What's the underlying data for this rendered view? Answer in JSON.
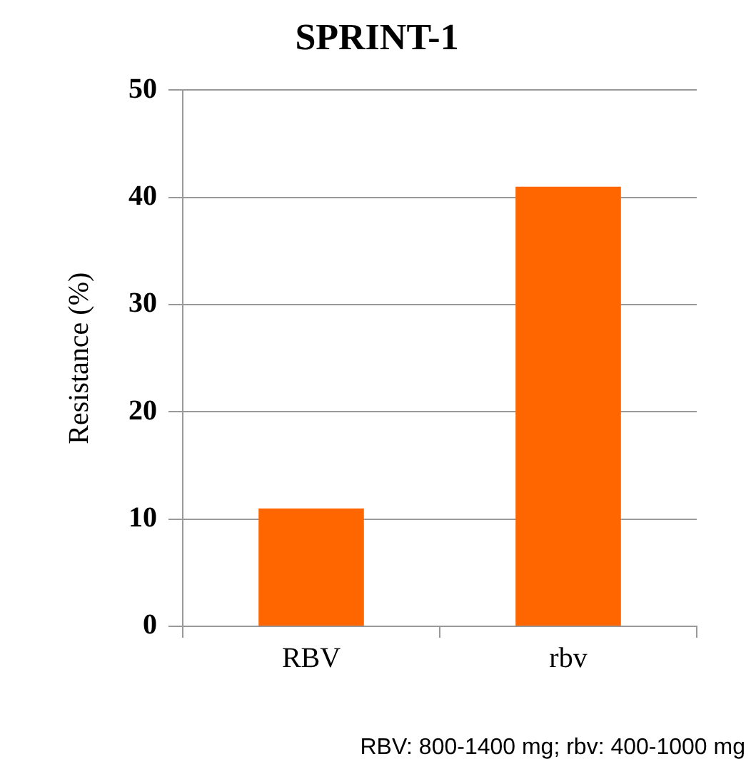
{
  "chart_data": {
    "type": "bar",
    "title": "SPRINT-1",
    "ylabel": "Resistance (%)",
    "categories": [
      "RBV",
      "rbv"
    ],
    "values": [
      11,
      41
    ],
    "color": "#ff6600",
    "ylim": [
      0,
      50
    ],
    "yticks": [
      0,
      10,
      20,
      30,
      40,
      50
    ],
    "grid": "y",
    "legend": false,
    "annotations": [
      "RBV: 800-1400 mg; rbv: 400-1000 mg"
    ]
  }
}
